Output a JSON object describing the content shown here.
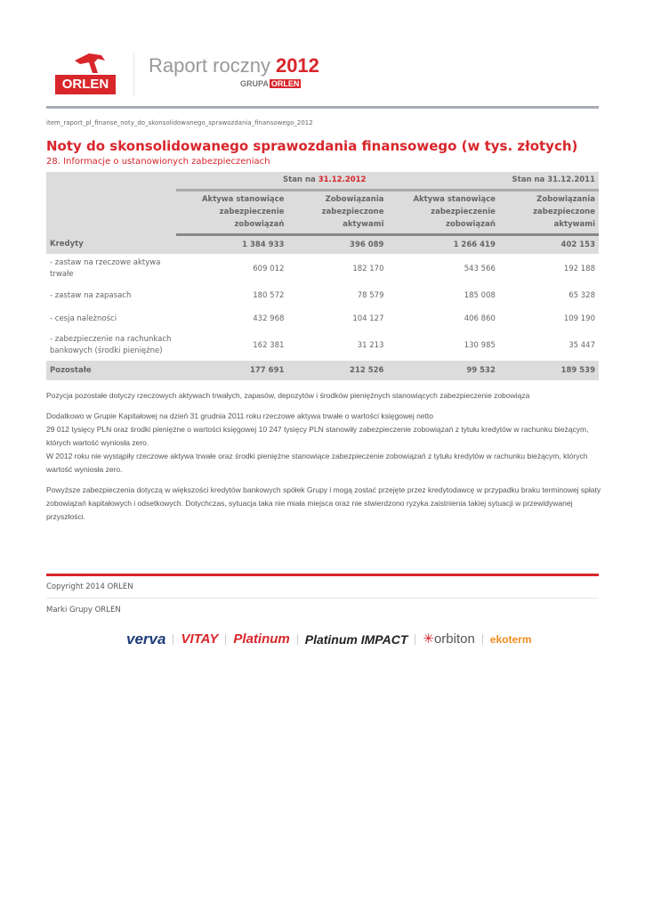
{
  "header": {
    "logo_text": "ORLEN",
    "report_title": "Raport roczny",
    "report_year": "2012",
    "group_prefix": "GRUPA",
    "group_name": "ORLEN"
  },
  "breadcrumb": "item_raport_pl_finanse_noty_do_skonsolidowanego_sprawozdania_finansowego_2012",
  "title": "Noty do skonsolidowanego sprawozdania finansowego (w tys. złotych)",
  "subtitle": "28. Informacje o ustanowionych zabezpieczeniach",
  "table": {
    "period1_prefix": "Stan na",
    "period1_date": "31.12.2012",
    "period2": "Stan na 31.12.2011",
    "columns": [
      "Aktywa stanowiące zabezpieczenie zobowiązań",
      "Zobowiązania zabezpieczone aktywami",
      "Aktywa stanowiące zabezpieczenie zobowiązań",
      "Zobowiązania zabezpieczone aktywami"
    ],
    "rows": [
      {
        "label": "Kredyty",
        "values": [
          "1 384 933",
          "396 089",
          "1 266 419",
          "402 153"
        ]
      },
      {
        "label": "- zastaw na rzeczowe aktywa trwałe",
        "values": [
          "609 012",
          "182 170",
          "543 566",
          "192 188"
        ]
      },
      {
        "label": "- zastaw na zapasach",
        "values": [
          "180 572",
          "78 579",
          "185 008",
          "65 328"
        ]
      },
      {
        "label": "- cesja należności",
        "values": [
          "432 968",
          "104 127",
          "406 860",
          "109 190"
        ]
      },
      {
        "label": "- zabezpieczenie na rachunkach bankowych (środki pieniężne)",
        "values": [
          "162 381",
          "31 213",
          "130 985",
          "35 447"
        ]
      },
      {
        "label": "Pozostałe",
        "values": [
          "177 691",
          "212 526",
          "99 532",
          "189 539"
        ]
      }
    ]
  },
  "paragraphs": [
    "Pozycja pozostałe dotyczy rzeczowych aktywach trwałych, zapasów, depozytów i środków pieniężnych stanowiących zabezpieczenie zobowiąza",
    "Dodatkowo w Grupie Kapitałowej na dzień 31 grudnia 2011 roku rzeczowe aktywa trwałe o wartości księgowej netto",
    "29 012 tysięcy PLN oraz środki pieniężne o wartości księgowej 10 247 tysięcy PLN stanowiły zabezpieczenie zobowiązań z tytułu kredytów w rachunku bieżącym, których wartość wyniosła zero.",
    "W 2012 roku nie wystąpiły rzeczowe aktywa trwałe oraz środki pieniężne stanowiące zabezpieczenie zobowiązań z tytułu kredytów w rachunku bieżącym, których wartość wyniosła zero.",
    "Powyższe zabezpieczenia dotyczą w większości kredytów bankowych spółek Grupy i mogą zostać przejęte przez kredytodawcę w przypadku braku terminowej spłaty zobowiązań kapitałowych i odsetkowych. Dotychczas, sytuacja taka nie miała miejsca oraz nie stwierdzono ryzyka zaistnienia takiej sytuacji w przewidywanej przyszłości."
  ],
  "footer": {
    "copyright": "Copyright 2014 ORLEN",
    "brands_label": "Marki Grupy ORLEN",
    "brands": [
      "verva",
      "VITAY",
      "Platinum",
      "Platinum IMPACT",
      "orbiton",
      "ekoterm"
    ]
  },
  "colors": {
    "accent": "#d8262b",
    "table_bg": "#dcdcdc"
  }
}
